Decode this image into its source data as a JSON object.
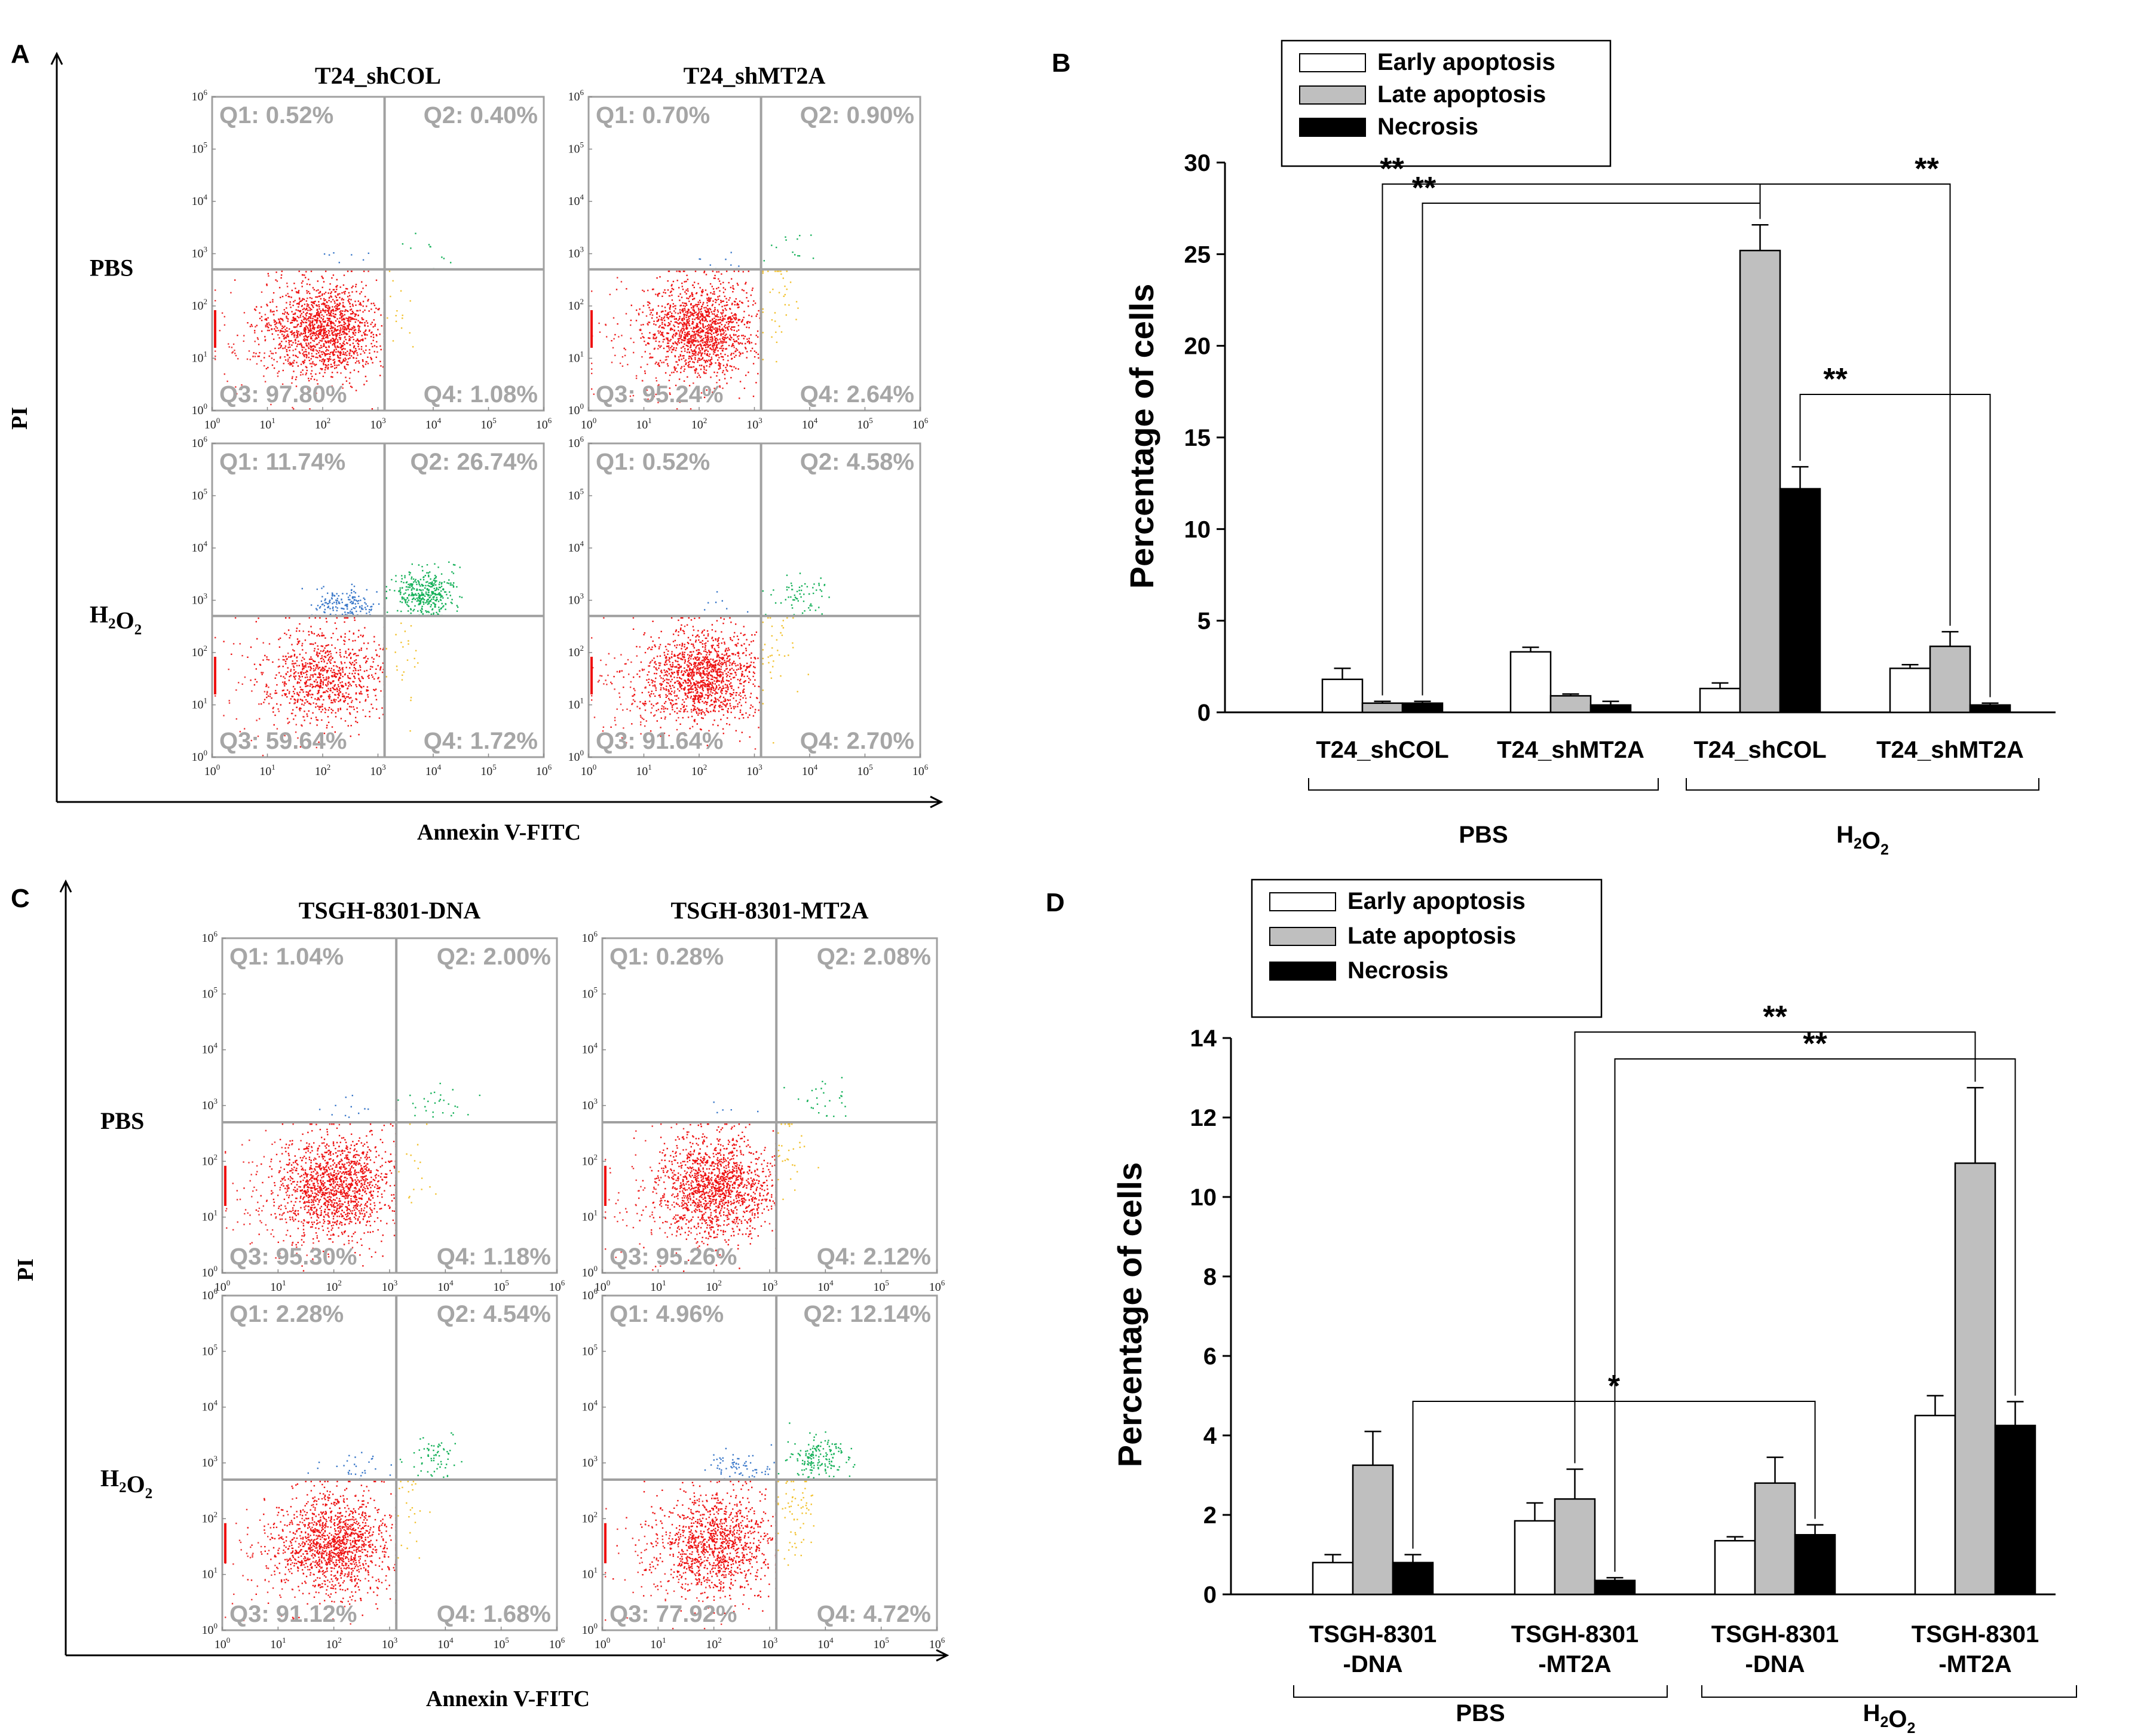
{
  "chart_data": [
    {
      "id": "A",
      "type": "scatter",
      "panel_label": "A",
      "subtype": "flow-cytometry-quadrants",
      "columns": [
        "T24_shCOL",
        "T24_shMT2A"
      ],
      "rows": [
        "PBS",
        "H2O2"
      ],
      "xlabel": "Annexin V-FITC",
      "ylabel": "PI",
      "quadrants": [
        [
          {
            "Q1": "Q1: 0.52%",
            "Q2": "Q2: 0.40%",
            "Q3": "Q3: 97.80%",
            "Q4": "Q4: 1.08%"
          },
          {
            "Q1": "Q1: 0.70%",
            "Q2": "Q2: 0.90%",
            "Q3": "Q3: 95.24%",
            "Q4": "Q4: 2.64%"
          }
        ],
        [
          {
            "Q1": "Q1: 11.74%",
            "Q2": "Q2: 26.74%",
            "Q3": "Q3: 59.64%",
            "Q4": "Q4: 1.72%"
          },
          {
            "Q1": "Q1: 0.52%",
            "Q2": "Q2: 4.58%",
            "Q3": "Q3: 91.64%",
            "Q4": "Q4: 2.70%"
          }
        ]
      ]
    },
    {
      "id": "B",
      "type": "bar",
      "panel_label": "B",
      "categories": [
        "T24_shCOL",
        "T24_shMT2A",
        "T24_shCOL",
        "T24_shMT2A"
      ],
      "groups": [
        "PBS",
        "H2O2"
      ],
      "ylabel": "Percentage of cells",
      "ylim": [
        0,
        30
      ],
      "yticks": [
        0,
        5,
        10,
        15,
        20,
        25,
        30
      ],
      "series": [
        {
          "name": "Early apoptosis",
          "color": "#ffffff",
          "values": [
            1.8,
            3.3,
            1.3,
            2.4
          ],
          "errors": [
            0.6,
            0.25,
            0.3,
            0.2
          ]
        },
        {
          "name": "Late apoptosis",
          "color": "#bfbfbf",
          "values": [
            0.5,
            0.9,
            25.2,
            3.6
          ],
          "errors": [
            0.1,
            0.1,
            1.4,
            0.8
          ]
        },
        {
          "name": "Necrosis",
          "color": "#000000",
          "values": [
            0.5,
            0.4,
            12.2,
            0.4
          ],
          "errors": [
            0.1,
            0.2,
            1.2,
            0.1
          ]
        }
      ],
      "significance": [
        {
          "label": "**",
          "from": [
            0,
            1
          ],
          "to": [
            2,
            1
          ]
        },
        {
          "label": "**",
          "from": [
            0,
            2
          ],
          "to": [
            2,
            1
          ]
        },
        {
          "label": "**",
          "from": [
            2,
            1
          ],
          "to": [
            3,
            1
          ]
        },
        {
          "label": "**",
          "from": [
            2,
            2
          ],
          "to": [
            3,
            2
          ]
        }
      ]
    },
    {
      "id": "C",
      "type": "scatter",
      "panel_label": "C",
      "subtype": "flow-cytometry-quadrants",
      "columns": [
        "TSGH-8301-DNA",
        "TSGH-8301-MT2A"
      ],
      "rows": [
        "PBS",
        "H2O2"
      ],
      "xlabel": "Annexin V-FITC",
      "ylabel": "PI",
      "quadrants": [
        [
          {
            "Q1": "Q1: 1.04%",
            "Q2": "Q2: 2.00%",
            "Q3": "Q3: 95.30%",
            "Q4": "Q4: 1.18%"
          },
          {
            "Q1": "Q1: 0.28%",
            "Q2": "Q2: 2.08%",
            "Q3": "Q3: 95.26%",
            "Q4": "Q4: 2.12%"
          }
        ],
        [
          {
            "Q1": "Q1: 2.28%",
            "Q2": "Q2: 4.54%",
            "Q3": "Q3: 91.12%",
            "Q4": "Q4: 1.68%"
          },
          {
            "Q1": "Q1: 4.96%",
            "Q2": "Q2: 12.14%",
            "Q3": "Q3: 77.92%",
            "Q4": "Q4: 4.72%"
          }
        ]
      ]
    },
    {
      "id": "D",
      "type": "bar",
      "panel_label": "D",
      "categories": [
        "TSGH-8301 -DNA",
        "TSGH-8301 -MT2A",
        "TSGH-8301 -DNA",
        "TSGH-8301 -MT2A"
      ],
      "groups": [
        "PBS",
        "H2O2"
      ],
      "ylabel": "Percentage of cells",
      "ylim": [
        0,
        14
      ],
      "yticks": [
        0,
        2,
        4,
        6,
        8,
        10,
        12,
        14
      ],
      "series": [
        {
          "name": "Early apoptosis",
          "color": "#ffffff",
          "values": [
            0.8,
            1.85,
            1.35,
            4.5
          ],
          "errors": [
            0.2,
            0.45,
            0.1,
            0.5
          ]
        },
        {
          "name": "Late apoptosis",
          "color": "#bfbfbf",
          "values": [
            3.25,
            2.4,
            2.8,
            10.85
          ],
          "errors": [
            0.85,
            0.75,
            0.65,
            1.9
          ]
        },
        {
          "name": "Necrosis",
          "color": "#000000",
          "values": [
            0.8,
            0.35,
            1.5,
            4.25
          ],
          "errors": [
            0.2,
            0.07,
            0.25,
            0.6
          ]
        }
      ],
      "significance": [
        {
          "label": "*",
          "from": [
            0,
            2
          ],
          "to": [
            2,
            2
          ]
        },
        {
          "label": "**",
          "from": [
            1,
            1
          ],
          "to": [
            3,
            1
          ]
        },
        {
          "label": "**",
          "from": [
            1,
            2
          ],
          "to": [
            3,
            2
          ]
        }
      ]
    }
  ],
  "flow_ticks": [
    "10^0",
    "10^1",
    "10^2",
    "10^3",
    "10^4",
    "10^5",
    "10^6"
  ]
}
